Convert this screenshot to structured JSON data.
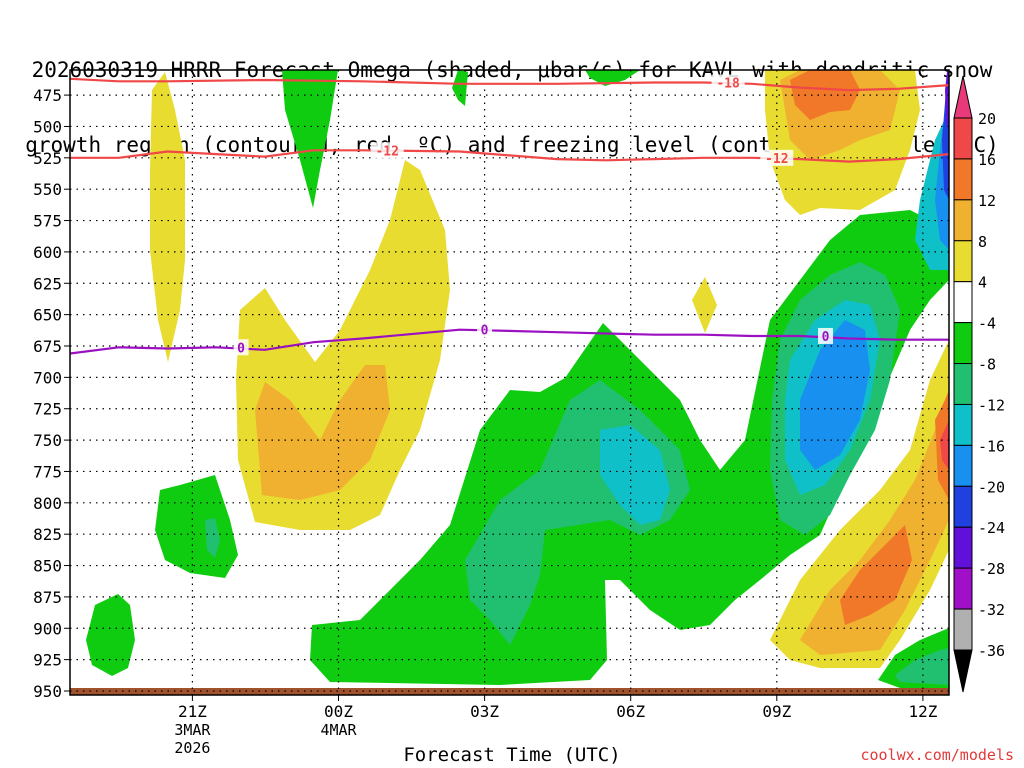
{
  "title_line1": "2026030319 HRRR Forecast Omega (shaded, μbar/s) for KAVL with dendritic snow",
  "title_line2": "growth region (contoured, red, ºC) and freezing level (contoured, purple, ºC)",
  "credit": "coolwx.com/models",
  "chart_data": {
    "type": "heatmap",
    "xlabel": "Forecast Time (UTC)",
    "ylabel": "",
    "x_range_hours": [
      0,
      18
    ],
    "y_range_mb": [
      455,
      950
    ],
    "y_ticks": [
      475,
      500,
      525,
      550,
      575,
      600,
      625,
      650,
      675,
      700,
      725,
      750,
      775,
      800,
      825,
      850,
      875,
      900,
      925,
      950
    ],
    "x_ticks": [
      {
        "hour": 2,
        "label": "21Z",
        "sub1": "3MAR",
        "sub2": "2026"
      },
      {
        "hour": 5,
        "label": "00Z",
        "sub1": "4MAR",
        "sub2": ""
      },
      {
        "hour": 8,
        "label": "03Z",
        "sub1": "",
        "sub2": ""
      },
      {
        "hour": 11,
        "label": "06Z",
        "sub1": "",
        "sub2": ""
      },
      {
        "hour": 14,
        "label": "09Z",
        "sub1": "",
        "sub2": ""
      },
      {
        "hour": 17,
        "label": "12Z",
        "sub1": "",
        "sub2": ""
      }
    ],
    "colorbar": {
      "levels": [
        20,
        16,
        12,
        8,
        4,
        -4,
        -8,
        -12,
        -16,
        -20,
        -24,
        -28,
        -32,
        -36
      ],
      "colors": [
        "#e8397a",
        "#f04848",
        "#f07828",
        "#f0b030",
        "#e8dc30",
        "#ffffff",
        "#10cc10",
        "#20c070",
        "#10c0c8",
        "#1890f0",
        "#2040e0",
        "#6010d8",
        "#a010c8",
        "#b0b0b0",
        "#000000"
      ]
    },
    "contours": [
      {
        "name": "dgz_top",
        "label": "-18",
        "color": "#f04848",
        "points": [
          [
            0,
            462
          ],
          [
            1,
            464
          ],
          [
            2,
            464
          ],
          [
            4,
            463
          ],
          [
            6,
            464
          ],
          [
            8,
            466
          ],
          [
            10,
            466
          ],
          [
            12,
            465
          ],
          [
            13,
            465
          ],
          [
            14,
            466
          ],
          [
            15,
            469
          ],
          [
            16,
            471
          ],
          [
            17,
            470
          ],
          [
            18,
            467
          ]
        ],
        "label_hours": [
          13.0
        ]
      },
      {
        "name": "dgz_bottom",
        "label": "-12",
        "color": "#f04848",
        "points": [
          [
            0,
            525
          ],
          [
            1,
            525
          ],
          [
            2,
            520
          ],
          [
            3,
            522
          ],
          [
            4,
            524
          ],
          [
            5,
            519
          ],
          [
            6,
            519
          ],
          [
            8,
            520
          ],
          [
            10,
            526
          ],
          [
            11,
            527
          ],
          [
            12,
            526
          ],
          [
            13,
            525
          ],
          [
            14,
            525
          ],
          [
            15,
            526
          ],
          [
            16,
            528
          ],
          [
            17,
            526
          ],
          [
            18,
            522
          ]
        ],
        "label_hours": [
          6.0,
          14.0
        ]
      },
      {
        "name": "freezing_level",
        "label": "0",
        "color": "#9b10c0",
        "points": [
          [
            0,
            681
          ],
          [
            1,
            676
          ],
          [
            2,
            677
          ],
          [
            3,
            676
          ],
          [
            4,
            678
          ],
          [
            5,
            672
          ],
          [
            6,
            669
          ],
          [
            8,
            662
          ],
          [
            9,
            663
          ],
          [
            10,
            664
          ],
          [
            12,
            666
          ],
          [
            13,
            666
          ],
          [
            14,
            667
          ],
          [
            15,
            667
          ],
          [
            16,
            669
          ],
          [
            17,
            670
          ],
          [
            18,
            670
          ]
        ],
        "label_hours": [
          3.0,
          8.0,
          15.0
        ]
      }
    ],
    "ground_mb": 950
  }
}
